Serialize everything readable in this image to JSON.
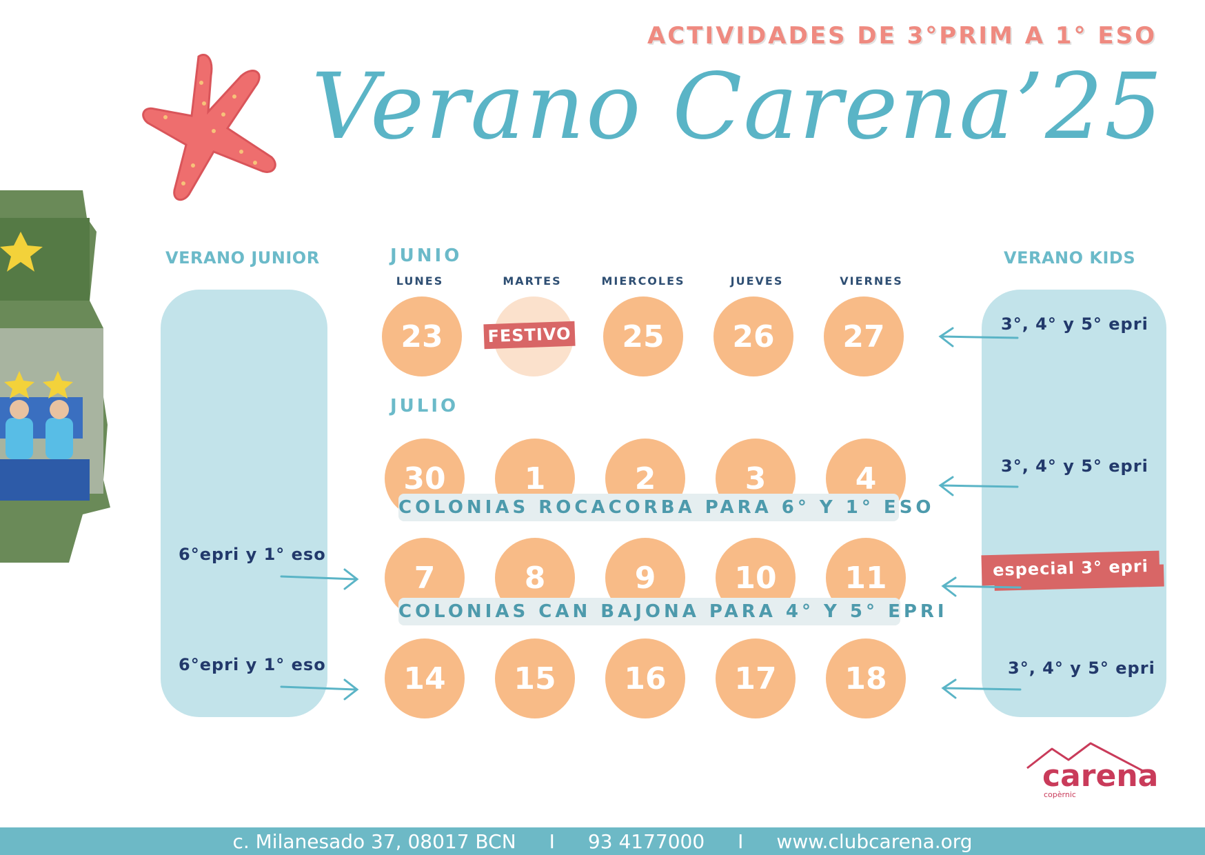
{
  "header": {
    "subtitle": "ACTIVIDADES DE 3°PRIM A 1° ESO",
    "title": "Verano Carena’25"
  },
  "columns": {
    "left_title": "VERANO JUNIOR",
    "right_title": "VERANO KIDS"
  },
  "months": {
    "june": "JUNIO",
    "july": "JULIO"
  },
  "day_names": [
    "LUNES",
    "MARTES",
    "MIERCOLES",
    "JUEVES",
    "VIERNES"
  ],
  "weeks": [
    {
      "days": [
        "23",
        "",
        "25",
        "26",
        "27"
      ],
      "holiday_label": "FESTIVO"
    },
    {
      "days": [
        "30",
        "1",
        "2",
        "3",
        "4"
      ]
    },
    {
      "days": [
        "7",
        "8",
        "9",
        "10",
        "11"
      ]
    },
    {
      "days": [
        "14",
        "15",
        "16",
        "17",
        "18"
      ]
    }
  ],
  "banners": {
    "rocacorba": "COLONIAS ROCACORBA PARA 6° Y 1° ESO",
    "canbajona": "COLONIAS CAN BAJONA PARA 4° Y 5° EPRI"
  },
  "junior_notes": {
    "week3": "6°epri y 1° eso",
    "week4": "6°epri y 1° eso"
  },
  "kids_notes": {
    "week1": "3°, 4° y 5° epri",
    "week2": "3°, 4° y 5° epri",
    "week3": "especial 3° epri",
    "week4": "3°, 4° y 5° epri"
  },
  "logo": {
    "name": "carena",
    "sub": "copèrnic"
  },
  "footer": {
    "address": "c. Milanesado 37, 08017 BCN",
    "separator": "I",
    "phone": "93 4177000",
    "web": "www.clubcarena.org"
  },
  "colors": {
    "accent": "#5ab4c6",
    "subtitle": "#ef8a80",
    "day_circle": "#f8bb87",
    "panel": "#c2e3ea",
    "note_text": "#22396b",
    "brush": "#d86666",
    "starfish": "#ee6e6e",
    "logo": "#c93b5a"
  }
}
